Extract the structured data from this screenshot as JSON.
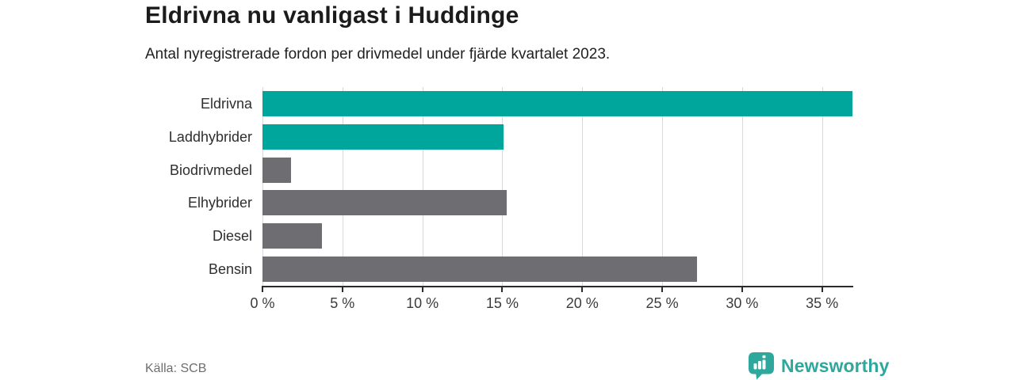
{
  "header": {
    "title": "Eldrivna nu vanligast i Huddinge",
    "subtitle": "Antal nyregistrerade fordon per drivmedel under fjärde kvartalet 2023."
  },
  "chart_data": {
    "type": "bar",
    "orientation": "horizontal",
    "categories": [
      "Eldrivna",
      "Laddhybrider",
      "Biodrivmedel",
      "Elhybrider",
      "Diesel",
      "Bensin"
    ],
    "values": [
      36.9,
      15.1,
      1.8,
      15.3,
      3.7,
      27.2
    ],
    "unit": "%",
    "highlighted_categories": [
      "Eldrivna",
      "Laddhybrider"
    ],
    "bar_color_keys": [
      "accent",
      "accent",
      "neutral",
      "neutral",
      "neutral",
      "neutral"
    ],
    "xlim": [
      0,
      36.9
    ],
    "x_tick_values": [
      0,
      5,
      10,
      15,
      20,
      25,
      30,
      35
    ],
    "x_tick_labels": [
      "0 %",
      "5 %",
      "10 %",
      "15 %",
      "20 %",
      "25 %",
      "30 %",
      "35 %"
    ],
    "grid": true,
    "legend": "none",
    "title": "Eldrivna nu vanligast i Huddinge",
    "xlabel": "",
    "ylabel": ""
  },
  "colors": {
    "accent": "#00a59b",
    "neutral": "#6e6e72",
    "gridline": "#d9d9d9",
    "axis": "#2b2b2b",
    "brand": "#2ea79d"
  },
  "footer": {
    "source": "Källa: SCB",
    "brand": "Newsworthy",
    "brand_icon": "bar-chart-speech-bubble-icon"
  }
}
